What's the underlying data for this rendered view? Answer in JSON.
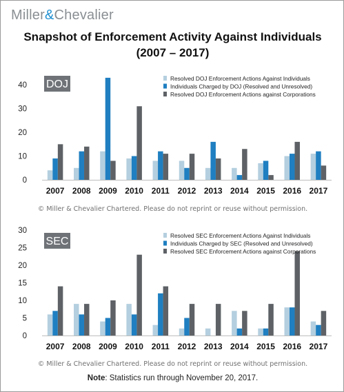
{
  "logo": {
    "left": "Miller",
    "amp": "&",
    "right": "Chevalier"
  },
  "title": {
    "line1": "Snapshot of Enforcement Activity Against Individuals",
    "line2": "(2007 – 2017)"
  },
  "copyright": "© Miller & Chevalier Chartered. Please do not reprint or reuse without permission.",
  "note": {
    "label": "Note",
    "text": ": Statistics run through November  20, 2017."
  },
  "colors": {
    "light": "#b4cfdf",
    "mid": "#1f7fc1",
    "dark": "#5e6266",
    "badge": "#6f7378"
  },
  "chart_data": [
    {
      "type": "bar",
      "panel_label": "DOJ",
      "categories": [
        "2007",
        "2008",
        "2009",
        "2010",
        "2011",
        "2012",
        "2013",
        "2014",
        "2015",
        "2016",
        "2017"
      ],
      "series": [
        {
          "name": "Resolved DOJ Enforcement Actions Against Individuals",
          "values": [
            4,
            5,
            12,
            9,
            8,
            8,
            5,
            5,
            7,
            10,
            11
          ]
        },
        {
          "name": "Individuals Charged by DOJ (Resolved and Unresolved)",
          "values": [
            9,
            12,
            43,
            10,
            12,
            5,
            16,
            2,
            8,
            11,
            12
          ]
        },
        {
          "name": "Resolved DOJ Enforcement Actions against Corporations",
          "values": [
            15,
            14,
            8,
            31,
            11,
            11,
            9,
            13,
            2,
            16,
            6
          ]
        }
      ],
      "ylim": [
        0,
        45
      ],
      "yticks": [
        0,
        10,
        20,
        30,
        40
      ],
      "legend_position": "top-right",
      "grid": false
    },
    {
      "type": "bar",
      "panel_label": "SEC",
      "categories": [
        "2007",
        "2008",
        "2009",
        "2010",
        "2011",
        "2012",
        "2013",
        "2014",
        "2015",
        "2016",
        "2017"
      ],
      "series": [
        {
          "name": "Resolved SEC Enforcement Actions Against Individuals",
          "values": [
            6,
            9,
            4,
            9,
            3,
            2,
            2,
            7,
            2,
            8,
            4
          ]
        },
        {
          "name": "Individuals Charged by SEC (Resolved and Unresolved)",
          "values": [
            7,
            6,
            5,
            6,
            12,
            5,
            0,
            2,
            2,
            8,
            3
          ]
        },
        {
          "name": "Resolved SEC Enforcement Actions against Corporations",
          "values": [
            14,
            9,
            10,
            23,
            14,
            9,
            9,
            7,
            9,
            24,
            7
          ]
        }
      ],
      "ylim": [
        0,
        30
      ],
      "yticks": [
        0,
        5,
        10,
        15,
        20,
        25,
        30
      ],
      "legend_position": "top-right",
      "grid": false
    }
  ]
}
